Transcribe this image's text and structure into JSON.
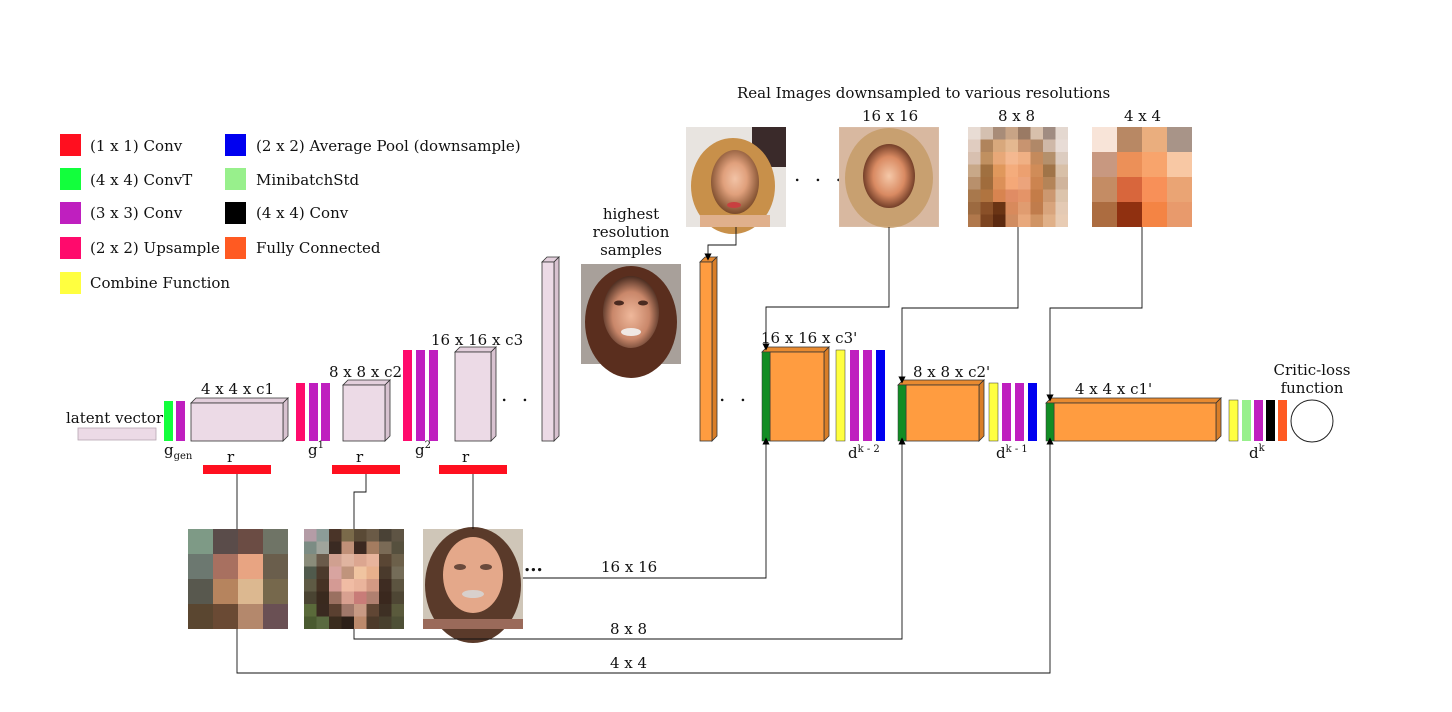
{
  "colors": {
    "conv1x1": "#ff0f1f",
    "convT4x4": "#12ff3c",
    "conv3x3": "#bf1fbf",
    "upsample": "#ff0a6c",
    "combine": "#ffff40",
    "avgpool": "#0000f0",
    "minibatchstd": "#98f08c",
    "conv4x4": "#000000",
    "fc": "#ff5a22",
    "gen_block": "#ecdae6",
    "disc_block": "#ff9c40",
    "disc_front": "#128c24"
  },
  "legend": [
    {
      "key": "conv1x1",
      "label": "(1 x 1) Conv"
    },
    {
      "key": "convT4x4",
      "label": "(4 x 4) ConvT"
    },
    {
      "key": "conv3x3",
      "label": "(3 x 3) Conv"
    },
    {
      "key": "upsample",
      "label": "(2 x 2) Upsample"
    },
    {
      "key": "combine",
      "label": "Combine Function"
    },
    {
      "key": "avgpool",
      "label": "(2 x 2) Average Pool (downsample)"
    },
    {
      "key": "minibatchstd",
      "label": "MinibatchStd"
    },
    {
      "key": "conv4x4",
      "label": "(4 x 4) Conv"
    },
    {
      "key": "fc",
      "label": "Fully Connected"
    }
  ],
  "labels": {
    "latent": "latent vector",
    "g_gen_base": "g",
    "g_gen_sub": "gen",
    "g1_base": "g",
    "g1_sup": "1",
    "g2_base": "g",
    "g2_sup": "2",
    "r": "r",
    "gen_block1": "4 x 4 x c1",
    "gen_block2": "8 x 8 x c2",
    "gen_block3": "16 x 16 x c3",
    "highest_res": [
      "highest",
      "resolution",
      "samples"
    ],
    "real_title": "Real Images downsampled to various resolutions",
    "real_16": "16 x 16",
    "real_8": "8 x 8",
    "real_4": "4 x 4",
    "disc_block1": "16 x 16 x c3'",
    "disc_block2": "8 x 8 x c2'",
    "disc_block3": "4 x 4 x c1'",
    "dk2_base": "d",
    "dk2_sup": "k - 2",
    "dk1_base": "d",
    "dk1_sup": "k - 1",
    "dk_base": "d",
    "dk_sup": "k",
    "critic": [
      "Critic-loss",
      "function"
    ],
    "route_16": "16 x 16",
    "route_8": "8 x 8",
    "route_4": "4 x 4",
    "ellipsis": ". . .",
    "ellipsis_tight": "..."
  }
}
